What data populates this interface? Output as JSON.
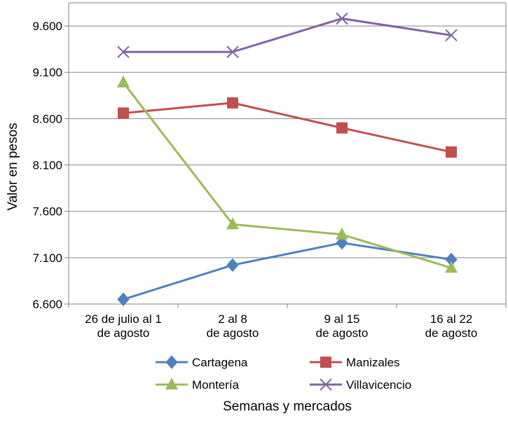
{
  "chart_data": {
    "type": "line",
    "categories": [
      [
        "26 de julio al 1",
        "de agosto"
      ],
      [
        "2 al 8",
        "de agosto"
      ],
      [
        "9 al 15",
        "de agosto"
      ],
      [
        "16 al 22",
        "de agosto"
      ]
    ],
    "yticks": [
      "6.600",
      "7.100",
      "7.600",
      "8.100",
      "8.600",
      "9.100",
      "9.600"
    ],
    "ylim": [
      6600,
      9850
    ],
    "xlabel": "Semanas y mercados",
    "ylabel": "Valor en pesos",
    "grid": true,
    "legend_position": "bottom",
    "series": [
      {
        "name": "Cartagena",
        "values": [
          6650,
          7020,
          7260,
          7080
        ],
        "color": "#4F81BD",
        "marker": "diamond"
      },
      {
        "name": "Manizales",
        "values": [
          8660,
          8770,
          8500,
          8240
        ],
        "color": "#C0504D",
        "marker": "square"
      },
      {
        "name": "Montería",
        "values": [
          8990,
          7460,
          7350,
          6990
        ],
        "color": "#9BBB59",
        "marker": "triangle"
      },
      {
        "name": "Villavicencio",
        "values": [
          9320,
          9320,
          9680,
          9500
        ],
        "color": "#8064A2",
        "marker": "x"
      }
    ]
  }
}
